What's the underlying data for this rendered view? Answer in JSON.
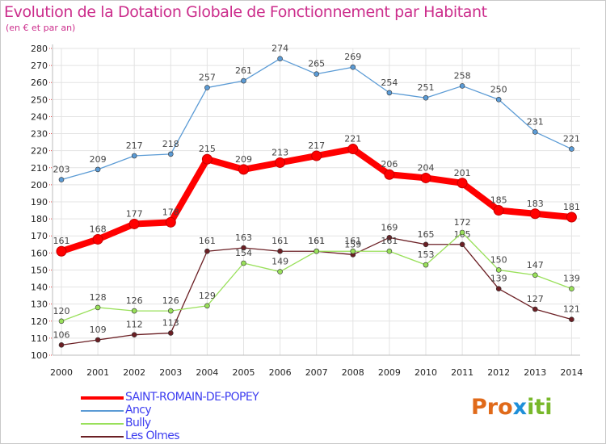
{
  "title": "Evolution de la Dotation Globale de Fonctionnement par Habitant",
  "subtitle": "(en € et par an)",
  "logo": {
    "p1": "Pro",
    "p2": "x",
    "p3": "iti"
  },
  "chart_data": {
    "type": "line",
    "x": [
      "2000",
      "2001",
      "2002",
      "2003",
      "2004",
      "2005",
      "2006",
      "2007",
      "2008",
      "2009",
      "2010",
      "2011",
      "2012",
      "2013",
      "2014"
    ],
    "ylim": [
      100,
      280
    ],
    "yticks": [
      100,
      110,
      120,
      130,
      140,
      150,
      160,
      170,
      180,
      190,
      200,
      210,
      220,
      230,
      240,
      250,
      260,
      270,
      280
    ],
    "grid": true,
    "legend_position": "bottom-left",
    "series": [
      {
        "name": "SAINT-ROMAIN-DE-POPEY",
        "color": "#ff0000",
        "emphasis": true,
        "values": [
          161,
          168,
          177,
          178,
          215,
          209,
          213,
          217,
          221,
          206,
          204,
          201,
          185,
          183,
          181
        ]
      },
      {
        "name": "Ancy",
        "color": "#5b9bd5",
        "values": [
          203,
          209,
          217,
          218,
          257,
          261,
          274,
          265,
          269,
          254,
          251,
          258,
          250,
          231,
          221
        ]
      },
      {
        "name": "Bully",
        "color": "#99e05a",
        "values": [
          120,
          128,
          126,
          126,
          129,
          154,
          149,
          161,
          161,
          161,
          153,
          172,
          150,
          147,
          139
        ]
      },
      {
        "name": "Les Olmes",
        "color": "#6b1f24",
        "values": [
          106,
          109,
          112,
          113,
          161,
          163,
          161,
          161,
          159,
          169,
          165,
          165,
          139,
          127,
          121
        ]
      }
    ]
  }
}
